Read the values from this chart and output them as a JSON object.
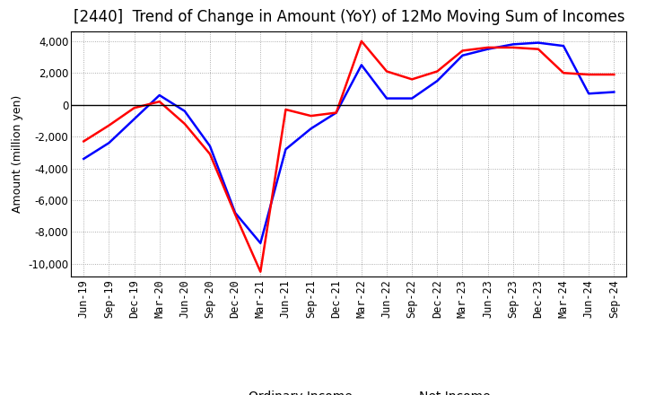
{
  "title": "[2440]  Trend of Change in Amount (YoY) of 12Mo Moving Sum of Incomes",
  "ylabel": "Amount (million yen)",
  "ylim": [
    -10800,
    4600
  ],
  "yticks": [
    -10000,
    -8000,
    -6000,
    -4000,
    -2000,
    0,
    2000,
    4000
  ],
  "x_labels": [
    "Jun-19",
    "Sep-19",
    "Dec-19",
    "Mar-20",
    "Jun-20",
    "Sep-20",
    "Dec-20",
    "Mar-21",
    "Jun-21",
    "Sep-21",
    "Dec-21",
    "Mar-22",
    "Jun-22",
    "Sep-22",
    "Dec-22",
    "Mar-23",
    "Jun-23",
    "Sep-23",
    "Dec-23",
    "Mar-24",
    "Jun-24",
    "Sep-24"
  ],
  "ordinary_income": [
    -3400,
    -2400,
    -900,
    600,
    -400,
    -2600,
    -6800,
    -8700,
    -2800,
    -1500,
    -500,
    2500,
    400,
    400,
    1500,
    3100,
    3500,
    3800,
    3900,
    3700,
    700,
    800
  ],
  "net_income": [
    -2300,
    -1300,
    -200,
    200,
    -1200,
    -3100,
    -6900,
    -10500,
    -300,
    -700,
    -500,
    4000,
    2100,
    1600,
    2100,
    3400,
    3600,
    3600,
    3500,
    2000,
    1900,
    1900
  ],
  "ordinary_color": "#0000ff",
  "net_color": "#ff0000",
  "background_color": "#ffffff",
  "grid_color": "#999999",
  "line_width": 1.8,
  "title_fontsize": 12,
  "axis_fontsize": 8.5,
  "ylabel_fontsize": 9,
  "legend_fontsize": 10
}
